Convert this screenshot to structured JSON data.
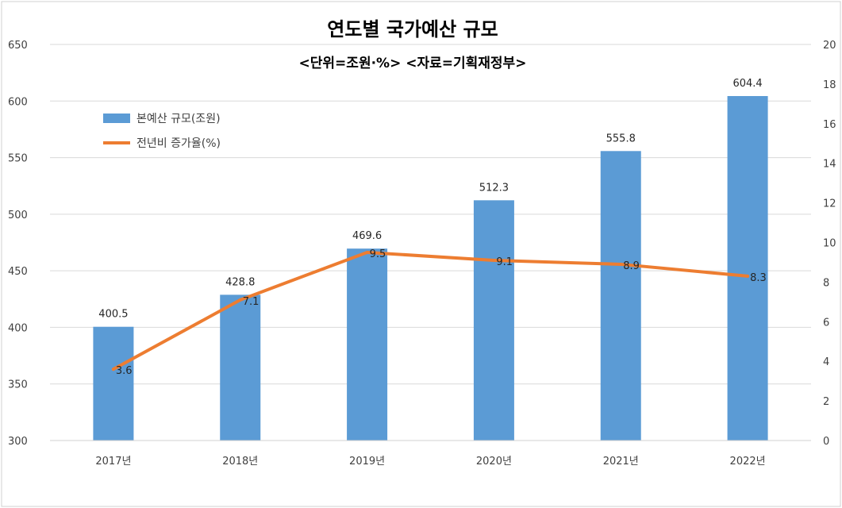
{
  "chart_data": {
    "type": "bar",
    "title": "연도별 국가예산 규모",
    "subtitle": "<단위=조원·%>  <자료=기획재정부>",
    "categories": [
      "2017년",
      "2018년",
      "2019년",
      "2020년",
      "2021년",
      "2022년"
    ],
    "series": [
      {
        "name": "본예산 규모(조원)",
        "type": "bar",
        "axis": "left",
        "color": "#5b9bd5",
        "values": [
          400.5,
          428.8,
          469.6,
          512.3,
          555.8,
          604.4
        ],
        "labels": [
          "400.5",
          "428.8",
          "469.6",
          "512.3",
          "555.8",
          "604.4"
        ]
      },
      {
        "name": "전년비 증가율(%)",
        "type": "line",
        "axis": "right",
        "color": "#ed7d31",
        "values": [
          3.6,
          7.1,
          9.5,
          9.1,
          8.9,
          8.3
        ],
        "labels": [
          "3.6",
          "7.1",
          "9.5",
          "9.1",
          "8.9",
          "8.3"
        ]
      }
    ],
    "y_left": {
      "range": [
        300,
        650
      ],
      "ticks": [
        300,
        350,
        400,
        450,
        500,
        550,
        600,
        650
      ],
      "tick_labels": [
        "300",
        "350",
        "400",
        "450",
        "500",
        "550",
        "600",
        "650"
      ]
    },
    "y_right": {
      "range": [
        0,
        20
      ],
      "ticks": [
        0,
        2,
        4,
        6,
        8,
        10,
        12,
        14,
        16,
        18,
        20
      ],
      "tick_labels": [
        "0",
        "2",
        "4",
        "6",
        "8",
        "10",
        "12",
        "14",
        "16",
        "18",
        "20"
      ]
    },
    "grid": true,
    "legend_position": "top-left",
    "gridline_color": "#d9d9d9"
  }
}
